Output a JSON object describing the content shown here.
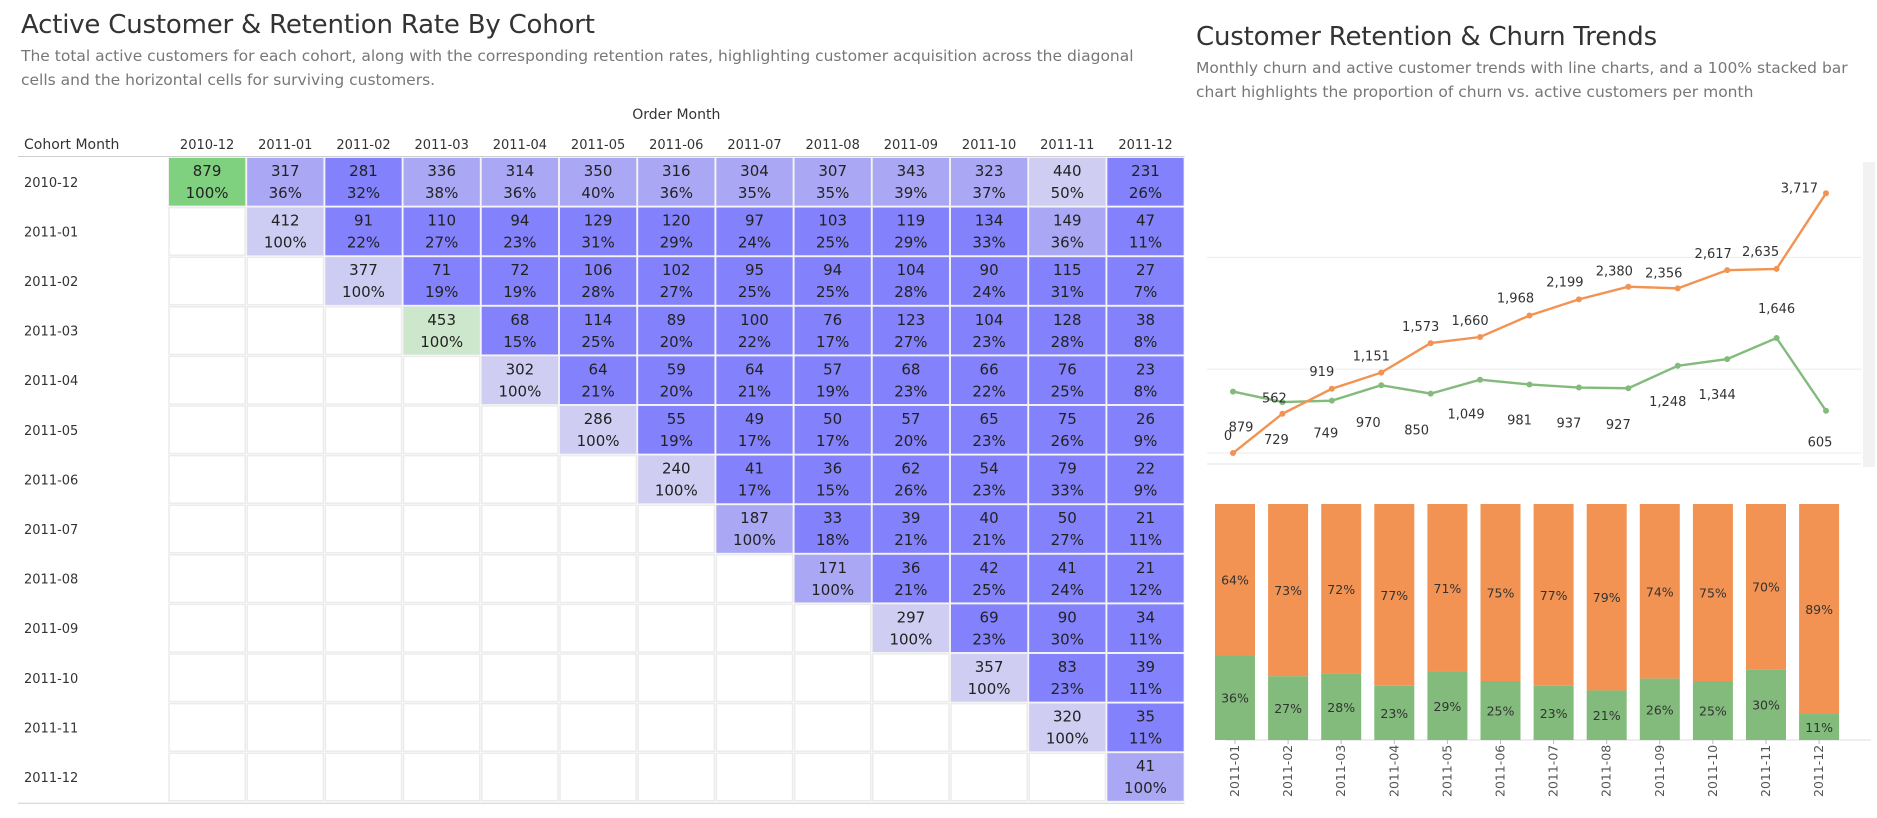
{
  "left": {
    "title": "Active Customer & Retention Rate By Cohort",
    "subtitle": "The total active customers for each cohort, along with the corresponding retention rates, highlighting customer acquisition across the diagonal cells and the horizontal cells for surviving customers."
  },
  "right": {
    "title": "Customer Retention & Churn Trends",
    "subtitle": "Monthly churn and active customer trends with line charts, and a 100% stacked bar chart highlights the proportion of churn vs. active customers per month"
  },
  "colors": {
    "acquisition_strong": "#7fd07f",
    "acquisition_light": "#cce7cc",
    "retention_light": "#cfcdf2",
    "retention_mid": "#aaa8f5",
    "retention_strong": "#8381fb",
    "active": "#82bb7b",
    "churn": "#f29353",
    "grid": "#ececec"
  },
  "chart_data": [
    {
      "type": "heatmap",
      "title": "Active Customer & Retention Rate By Cohort",
      "xlabel": "Order Month",
      "ylabel": "Cohort Month",
      "columns": [
        "2010-12",
        "2011-01",
        "2011-02",
        "2011-03",
        "2011-04",
        "2011-05",
        "2011-06",
        "2011-07",
        "2011-08",
        "2011-09",
        "2011-10",
        "2011-11",
        "2011-12"
      ],
      "rows": [
        {
          "cohort": "2010-12",
          "start": 0,
          "counts": [
            879,
            317,
            281,
            336,
            314,
            350,
            316,
            304,
            307,
            343,
            323,
            440,
            231
          ],
          "rates": [
            "100%",
            "36%",
            "32%",
            "38%",
            "36%",
            "40%",
            "36%",
            "35%",
            "35%",
            "39%",
            "37%",
            "50%",
            "26%"
          ]
        },
        {
          "cohort": "2011-01",
          "start": 1,
          "counts": [
            412,
            91,
            110,
            94,
            129,
            120,
            97,
            103,
            119,
            134,
            149,
            47
          ],
          "rates": [
            "100%",
            "22%",
            "27%",
            "23%",
            "31%",
            "29%",
            "24%",
            "25%",
            "29%",
            "33%",
            "36%",
            "11%"
          ]
        },
        {
          "cohort": "2011-02",
          "start": 2,
          "counts": [
            377,
            71,
            72,
            106,
            102,
            95,
            94,
            104,
            90,
            115,
            27
          ],
          "rates": [
            "100%",
            "19%",
            "19%",
            "28%",
            "27%",
            "25%",
            "25%",
            "28%",
            "24%",
            "31%",
            "7%"
          ]
        },
        {
          "cohort": "2011-03",
          "start": 3,
          "counts": [
            453,
            68,
            114,
            89,
            100,
            76,
            123,
            104,
            128,
            38
          ],
          "rates": [
            "100%",
            "15%",
            "25%",
            "20%",
            "22%",
            "17%",
            "27%",
            "23%",
            "28%",
            "8%"
          ]
        },
        {
          "cohort": "2011-04",
          "start": 4,
          "counts": [
            302,
            64,
            59,
            64,
            57,
            68,
            66,
            76,
            23
          ],
          "rates": [
            "100%",
            "21%",
            "20%",
            "21%",
            "19%",
            "23%",
            "22%",
            "25%",
            "8%"
          ]
        },
        {
          "cohort": "2011-05",
          "start": 5,
          "counts": [
            286,
            55,
            49,
            50,
            57,
            65,
            75,
            26
          ],
          "rates": [
            "100%",
            "19%",
            "17%",
            "17%",
            "20%",
            "23%",
            "26%",
            "9%"
          ]
        },
        {
          "cohort": "2011-06",
          "start": 6,
          "counts": [
            240,
            41,
            36,
            62,
            54,
            79,
            22
          ],
          "rates": [
            "100%",
            "17%",
            "15%",
            "26%",
            "23%",
            "33%",
            "9%"
          ]
        },
        {
          "cohort": "2011-07",
          "start": 7,
          "counts": [
            187,
            33,
            39,
            40,
            50,
            21
          ],
          "rates": [
            "100%",
            "18%",
            "21%",
            "21%",
            "27%",
            "11%"
          ]
        },
        {
          "cohort": "2011-08",
          "start": 8,
          "counts": [
            171,
            36,
            42,
            41,
            21
          ],
          "rates": [
            "100%",
            "21%",
            "25%",
            "24%",
            "12%"
          ]
        },
        {
          "cohort": "2011-09",
          "start": 9,
          "counts": [
            297,
            69,
            90,
            34
          ],
          "rates": [
            "100%",
            "23%",
            "30%",
            "11%"
          ]
        },
        {
          "cohort": "2011-10",
          "start": 10,
          "counts": [
            357,
            83,
            39
          ],
          "rates": [
            "100%",
            "23%",
            "11%"
          ]
        },
        {
          "cohort": "2011-11",
          "start": 11,
          "counts": [
            320,
            35
          ],
          "rates": [
            "100%",
            "11%"
          ]
        },
        {
          "cohort": "2011-12",
          "start": 12,
          "counts": [
            41
          ],
          "rates": [
            "100%"
          ]
        }
      ]
    },
    {
      "type": "line",
      "title": "Customer Retention & Churn Trends",
      "x": [
        "2010-12",
        "2011-01",
        "2011-02",
        "2011-03",
        "2011-04",
        "2011-05",
        "2011-06",
        "2011-07",
        "2011-08",
        "2011-09",
        "2011-10",
        "2011-11",
        "2011-12"
      ],
      "series": [
        {
          "color": "#f29353",
          "values": [
            0,
            562,
            919,
            1151,
            1573,
            1660,
            1968,
            2199,
            2380,
            2356,
            2617,
            2635,
            3717
          ],
          "labels": [
            "0",
            "562",
            "919",
            "1,151",
            "1,573",
            "1,660",
            "1,968",
            "2,199",
            "2,380",
            "2,356",
            "2,617",
            "2,635",
            "3,717"
          ]
        },
        {
          "color": "#82bb7b",
          "values": [
            879,
            729,
            749,
            970,
            850,
            1049,
            981,
            937,
            927,
            1248,
            1344,
            1646,
            605
          ],
          "labels": [
            "879",
            "729",
            "749",
            "970",
            "850",
            "1,049",
            "981",
            "937",
            "927",
            "1,248",
            "1,344",
            "1,646",
            "605"
          ]
        }
      ],
      "ylim": [
        -100,
        3950
      ],
      "grid": true
    },
    {
      "type": "bar",
      "stacked": "100%",
      "categories": [
        "2011-01",
        "2011-02",
        "2011-03",
        "2011-04",
        "2011-05",
        "2011-06",
        "2011-07",
        "2011-08",
        "2011-09",
        "2011-10",
        "2011-11",
        "2011-12"
      ],
      "series": [
        {
          "color": "#82bb7b",
          "values": [
            36,
            27,
            28,
            23,
            29,
            25,
            23,
            21,
            26,
            25,
            30,
            11
          ]
        },
        {
          "color": "#f29353",
          "values": [
            64,
            73,
            72,
            77,
            71,
            75,
            77,
            79,
            74,
            75,
            70,
            89
          ]
        }
      ]
    }
  ]
}
